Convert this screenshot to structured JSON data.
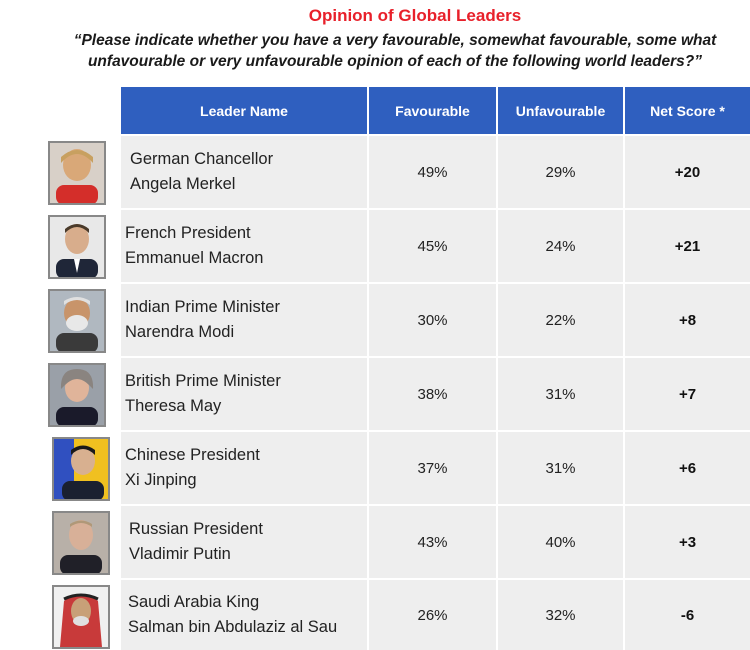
{
  "title": "Opinion of Global Leaders",
  "subtitle_line1": "“Please indicate whether you have a very favourable, somewhat favourable, some what",
  "subtitle_line2": "unfavourable or very unfavourable opinion of each of the following world leaders?”",
  "colors": {
    "title": "#e8202a",
    "header_bg": "#2f5fbf",
    "row_bg": "#eeeeee"
  },
  "chart_data": {
    "type": "table",
    "columns": [
      "Leader Name",
      "Favourable",
      "Unfavourable",
      "Net Score *"
    ],
    "rows": [
      {
        "title": "German Chancellor",
        "name": "Angela Merkel",
        "favourable": "49%",
        "unfavourable": "29%",
        "net": "+20",
        "photo": "merkel-photo"
      },
      {
        "title": "French President",
        "name": "Emmanuel Macron",
        "favourable": "45%",
        "unfavourable": "24%",
        "net": "+21",
        "photo": "macron-photo"
      },
      {
        "title": "Indian Prime Minister",
        "name": "Narendra Modi",
        "favourable": "30%",
        "unfavourable": "22%",
        "net": "+8",
        "photo": "modi-photo"
      },
      {
        "title": "British Prime Minister",
        "name": "Theresa May",
        "favourable": "38%",
        "unfavourable": "31%",
        "net": "+7",
        "photo": "may-photo"
      },
      {
        "title": "Chinese President",
        "name": "Xi Jinping",
        "favourable": "37%",
        "unfavourable": "31%",
        "net": "+6",
        "photo": "xi-photo"
      },
      {
        "title": "Russian President",
        "name": "Vladimir Putin",
        "favourable": "43%",
        "unfavourable": "40%",
        "net": "+3",
        "photo": "putin-photo"
      },
      {
        "title": "Saudi Arabia King",
        "name": "Salman bin Abdulaziz al Sau",
        "favourable": "26%",
        "unfavourable": "32%",
        "net": "-6",
        "photo": "salman-photo"
      }
    ]
  }
}
